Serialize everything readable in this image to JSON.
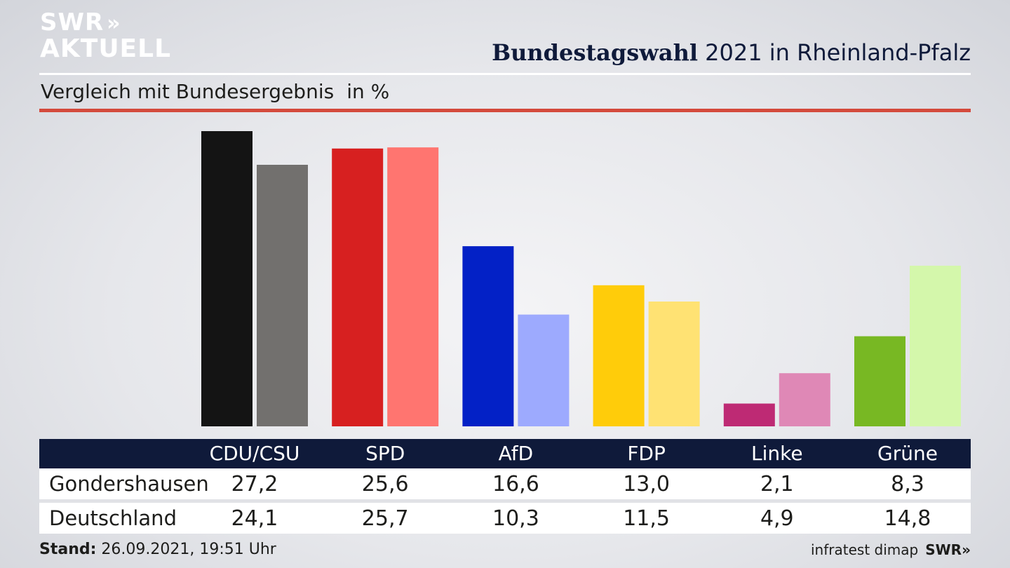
{
  "logo": {
    "line1": "SWR",
    "chevrons": "»",
    "line2": "AKTUELL"
  },
  "header": {
    "title_bold": "Bundestagswahl",
    "title_rest": " 2021 in Rheinland-Pfalz",
    "subtitle": "Vergleich mit Bundesergebnis",
    "unit": "in %"
  },
  "chart_data": {
    "type": "bar",
    "title": "Bundestagswahl 2021 in Rheinland-Pfalz",
    "subtitle": "Vergleich mit Bundesergebnis",
    "unit": "in %",
    "categories": [
      "CDU/CSU",
      "SPD",
      "AfD",
      "FDP",
      "Linke",
      "Grüne"
    ],
    "series": [
      {
        "name": "Gondershausen",
        "values": [
          27.2,
          25.6,
          16.6,
          13.0,
          2.1,
          8.3
        ],
        "colors": [
          "#141414",
          "#d72020",
          "#0321c6",
          "#ffcc0a",
          "#be2a74",
          "#78b823"
        ]
      },
      {
        "name": "Deutschland",
        "values": [
          24.1,
          25.7,
          10.3,
          11.5,
          4.9,
          14.8
        ],
        "colors": [
          "#72706e",
          "#ff7570",
          "#9daafe",
          "#ffe273",
          "#df88b6",
          "#d4f7ab"
        ]
      }
    ],
    "ylim": [
      0,
      28
    ],
    "grid": false,
    "legend": "table-below"
  },
  "table": {
    "headers": [
      "CDU/CSU",
      "SPD",
      "AfD",
      "FDP",
      "Linke",
      "Grüne"
    ],
    "rows": [
      {
        "label": "Gondershausen",
        "values": [
          "27,2",
          "25,6",
          "16,6",
          "13,0",
          "2,1",
          "8,3"
        ]
      },
      {
        "label": "Deutschland",
        "values": [
          "24,1",
          "25,7",
          "10,3",
          "11,5",
          "4,9",
          "14,8"
        ]
      }
    ]
  },
  "footer": {
    "stand_label": "Stand:",
    "stand_value": " 26.09.2021, 19:51 Uhr",
    "source": "infratest dimap",
    "brand": "SWR»"
  }
}
